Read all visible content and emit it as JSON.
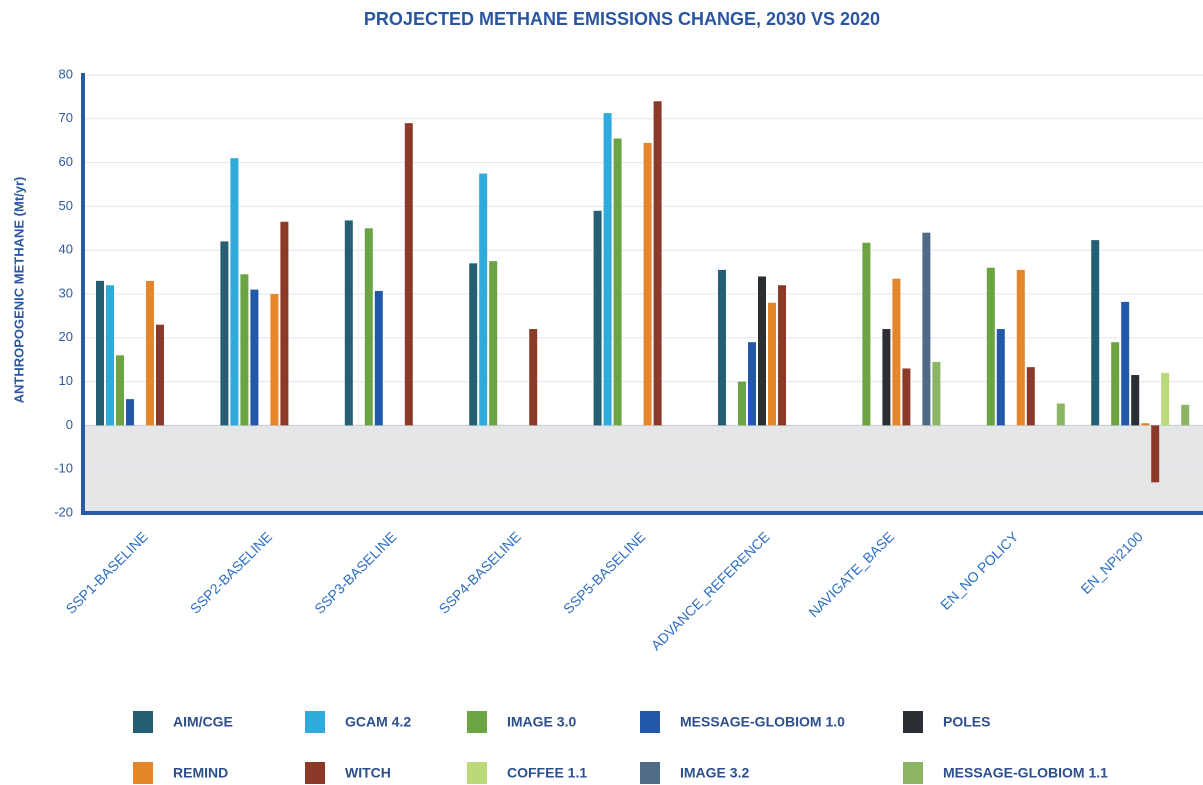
{
  "chart_data": {
    "type": "bar",
    "title": "PROJECTED METHANE EMISSIONS CHANGE, 2030 VS 2020",
    "y_label": "ANTHROPOGENIC METHANE (Mt/yr)",
    "categories": [
      "SSP1-BASELINE",
      "SSP2-BASELINE",
      "SSP3-BASELINE",
      "SSP4-BASELINE",
      "SSP5-BASELINE",
      "ADVANCE_REFERENCE",
      "NAVIGATE_BASE",
      "EN_NO POLICY",
      "EN_NPi2100"
    ],
    "series": [
      {
        "name": "AIM/CGE",
        "color": "#245f73",
        "values": [
          33,
          42,
          46.8,
          37,
          49,
          35.5,
          null,
          null,
          42.3
        ]
      },
      {
        "name": "GCAM 4.2",
        "color": "#2eaadc",
        "values": [
          32,
          61,
          null,
          57.5,
          71.3,
          null,
          null,
          null,
          null
        ]
      },
      {
        "name": "IMAGE 3.0",
        "color": "#6aa443",
        "values": [
          16,
          34.5,
          45,
          37.5,
          65.5,
          10,
          41.7,
          36,
          19
        ]
      },
      {
        "name": "MESSAGE-GLOBIOM 1.0",
        "color": "#2358a8",
        "values": [
          6,
          31,
          30.7,
          null,
          null,
          19,
          null,
          22,
          28.2
        ]
      },
      {
        "name": "POLES",
        "color": "#2b2f33",
        "values": [
          null,
          null,
          null,
          null,
          null,
          34,
          22,
          null,
          11.5
        ]
      },
      {
        "name": "REMIND",
        "color": "#e5862a",
        "values": [
          33,
          30,
          null,
          null,
          64.5,
          28,
          33.5,
          35.5,
          0.5
        ]
      },
      {
        "name": "WITCH",
        "color": "#8c3a27",
        "values": [
          23,
          46.5,
          69,
          22,
          74,
          32,
          13,
          13.3,
          -13
        ]
      },
      {
        "name": "COFFEE 1.1",
        "color": "#bcd97a",
        "values": [
          null,
          null,
          null,
          null,
          null,
          null,
          null,
          null,
          12
        ]
      },
      {
        "name": "IMAGE 3.2",
        "color": "#4f6b86",
        "values": [
          null,
          null,
          null,
          null,
          null,
          null,
          44,
          null,
          null
        ]
      },
      {
        "name": "MESSAGE-GLOBIOM 1.1",
        "color": "#8bb562",
        "values": [
          null,
          null,
          null,
          null,
          null,
          null,
          14.5,
          5,
          4.7
        ]
      }
    ],
    "ylim": [
      -20,
      80
    ],
    "yticks": [
      -20,
      -10,
      0,
      10,
      20,
      30,
      40,
      50,
      60,
      70,
      80
    ],
    "grid": true
  }
}
